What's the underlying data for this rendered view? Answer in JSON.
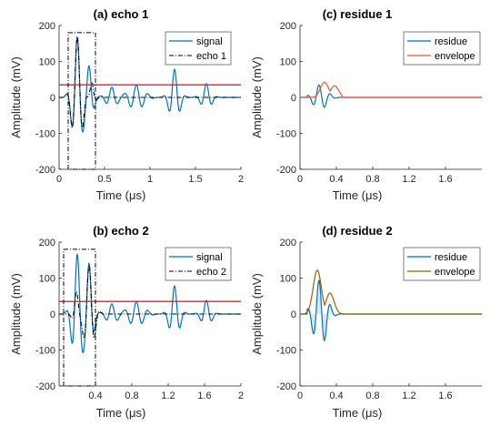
{
  "colors": {
    "signal": "#0072BD",
    "echo": "#000000",
    "threshold": "#D62728",
    "residue": "#0072BD",
    "envelope1": "#E8533A",
    "envelope2": "#8B6508",
    "fill2": "#C9E1F7"
  },
  "chart_data": [
    {
      "id": "a",
      "type": "line",
      "title": "(a) echo 1",
      "xlabel": "Time (μs)",
      "ylabel": "Amplitude (mV)",
      "xlim": [
        0,
        2
      ],
      "ylim": [
        -200,
        200
      ],
      "xticks": [
        0,
        0.5,
        1,
        1.5,
        2
      ],
      "xtick_labels": [
        "0",
        "0.5",
        "1",
        "1.5",
        "2"
      ],
      "yticks": [
        -200,
        -100,
        0,
        100,
        200
      ],
      "ytick_labels": [
        "-200",
        "-100",
        "0",
        "100",
        "200"
      ],
      "legend_position": "top-right",
      "threshold": 35,
      "window": [
        0.1,
        0.4,
        -200,
        180
      ],
      "series": [
        {
          "name": "signal",
          "style": "solid",
          "color_key": "signal",
          "gen": "signal_full",
          "params": {
            "a1": 165,
            "a2": 82
          }
        },
        {
          "name": "echo 1",
          "style": "dashdot",
          "color_key": "echo",
          "gen": "echo_pulse",
          "params": {
            "amp": 170,
            "t0": 0.2
          }
        }
      ]
    },
    {
      "id": "c",
      "type": "line",
      "title": "(c) residue 1",
      "xlabel": "Time (μs)",
      "ylabel": "Amplitude (mV)",
      "xlim": [
        0,
        2
      ],
      "ylim": [
        -200,
        200
      ],
      "xticks": [
        0,
        0.4,
        0.8,
        1.2,
        1.6
      ],
      "xtick_labels": [
        "0",
        "0.4",
        "0.8",
        "1.2",
        "1.6"
      ],
      "yticks": [
        -200,
        -100,
        0,
        100,
        200
      ],
      "ytick_labels": [
        "-200",
        "-100",
        "0",
        "100",
        "200"
      ],
      "legend_position": "top-right",
      "series": [
        {
          "name": "residue",
          "style": "solid",
          "color_key": "residue",
          "gen": "residue",
          "params": {
            "amp": 35
          }
        },
        {
          "name": "envelope",
          "style": "solid",
          "color_key": "envelope1",
          "gen": "envelope",
          "params": {
            "peaks": [
              [
                0.27,
                42
              ],
              [
                0.38,
                32
              ]
            ]
          }
        }
      ]
    },
    {
      "id": "b",
      "type": "line",
      "title": "(b) echo 2",
      "xlabel": "Time (μs)",
      "ylabel": "Amplitude (mV)",
      "xlim": [
        0,
        2
      ],
      "ylim": [
        -200,
        200
      ],
      "xticks": [
        0.4,
        0.8,
        1.2,
        1.6,
        2
      ],
      "xtick_labels": [
        "0.4",
        "0.8",
        "1.2",
        "1.6",
        "2"
      ],
      "yticks": [
        -200,
        -100,
        0,
        100,
        200
      ],
      "ytick_labels": [
        "-200",
        "-100",
        "0",
        "100",
        "200"
      ],
      "legend_position": "top-right",
      "threshold": 35,
      "window": [
        0.05,
        0.4,
        -200,
        180
      ],
      "series": [
        {
          "name": "signal",
          "style": "solid",
          "color_key": "signal",
          "gen": "signal_full",
          "params": {
            "a1": 165,
            "a2": 135
          }
        },
        {
          "name": "echo 2",
          "style": "dashdot",
          "color_key": "echo",
          "gen": "echo_pulse",
          "params": {
            "amp": 135,
            "t0": 0.33
          }
        }
      ]
    },
    {
      "id": "d",
      "type": "line",
      "title": "(d) residue 2",
      "xlabel": "Time (μs)",
      "ylabel": "Amplitude (mV)",
      "xlim": [
        0,
        2
      ],
      "ylim": [
        -200,
        200
      ],
      "xticks": [
        0,
        0.4,
        0.8,
        1.2,
        1.6
      ],
      "xtick_labels": [
        "0",
        "0.4",
        "0.8",
        "1.2",
        "1.6"
      ],
      "yticks": [
        -200,
        -100,
        0,
        100,
        200
      ],
      "ytick_labels": [
        "-200",
        "-100",
        "0",
        "100",
        "200"
      ],
      "legend_position": "top-right",
      "series": [
        {
          "name": "residue",
          "style": "solid",
          "color_key": "residue",
          "gen": "residue",
          "params": {
            "amp": 95,
            "fill": true
          }
        },
        {
          "name": "envelope",
          "style": "solid",
          "color_key": "envelope2",
          "gen": "envelope",
          "params": {
            "peaks": [
              [
                0.19,
                122
              ],
              [
                0.33,
                58
              ]
            ]
          }
        }
      ]
    }
  ]
}
